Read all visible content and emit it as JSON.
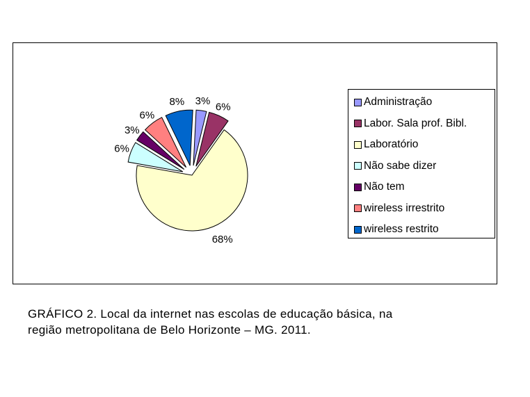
{
  "chart_data": {
    "type": "pie",
    "title": "",
    "categories": [
      "Administração",
      "Labor. Sala prof. Bibl.",
      "Laboratório",
      "Não sabe dizer",
      "Não tem",
      "wireless irrestrito",
      "wireless restrito"
    ],
    "values": [
      3,
      6,
      68,
      6,
      3,
      6,
      8
    ],
    "labels": [
      "3%",
      "6%",
      "68%",
      "6%",
      "3%",
      "6%",
      "8%"
    ],
    "colors": [
      "#9999FF",
      "#993366",
      "#FFFFCC",
      "#CCFFFF",
      "#660066",
      "#FF8080",
      "#0066CC"
    ],
    "exploded": true,
    "legend_position": "right"
  },
  "caption": {
    "line1": "GRÁFICO 2. Local da internet nas escolas de educação básica, na",
    "line2": "região metropolitana de Belo Horizonte – MG. 2011."
  }
}
